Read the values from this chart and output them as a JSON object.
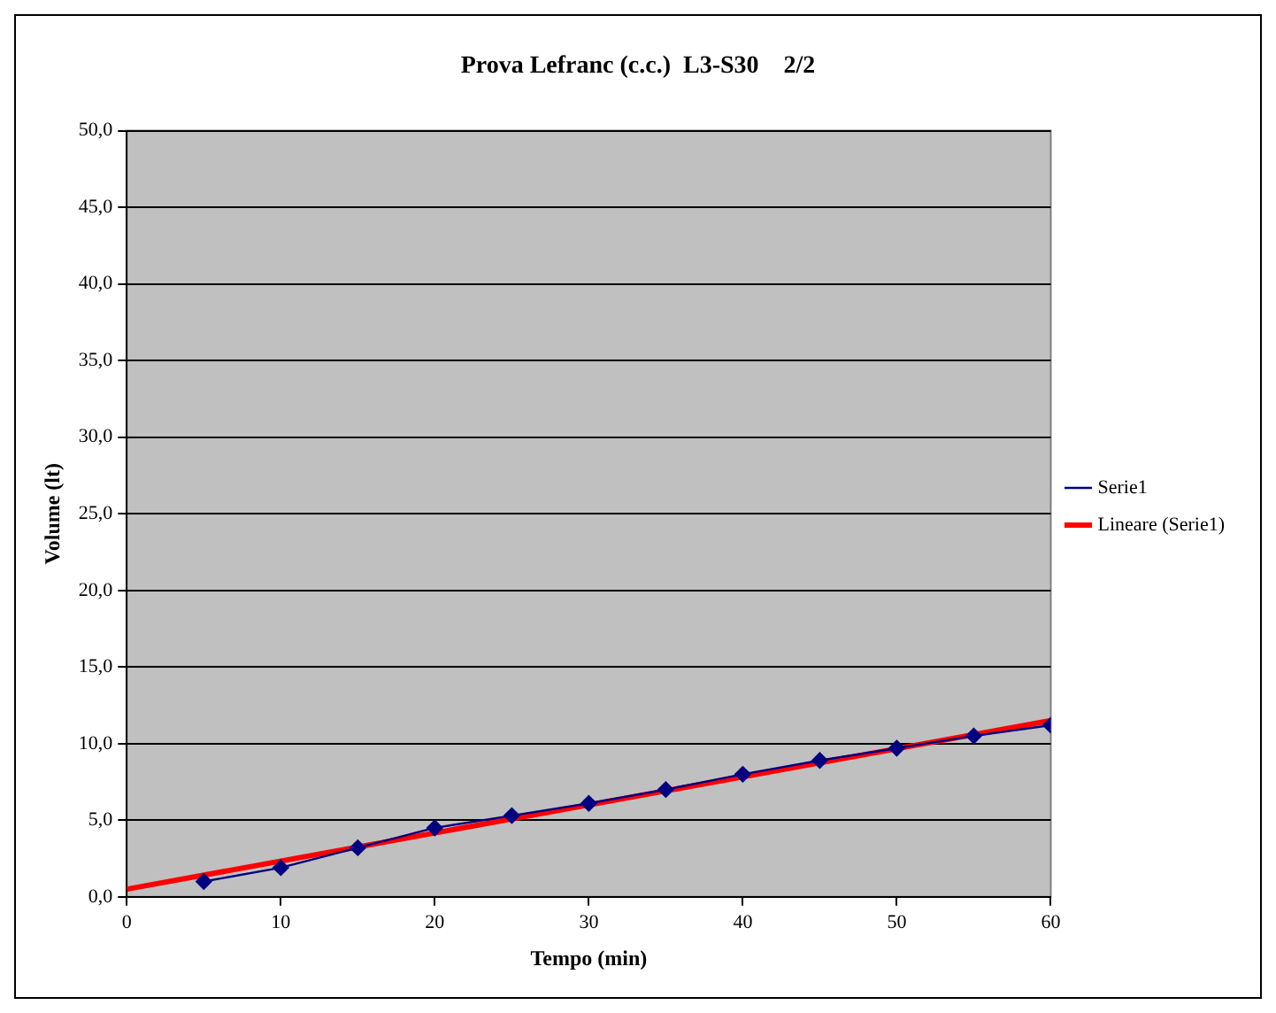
{
  "chart_data": {
    "type": "line",
    "title": "Prova Lefranc (c.c.)  L3-S30    2/2",
    "xlabel": "Tempo (min)",
    "ylabel": "Volume (lt)",
    "x": [
      5,
      10,
      15,
      20,
      25,
      30,
      35,
      40,
      45,
      50,
      55,
      60
    ],
    "series": [
      {
        "name": "Serie1",
        "color": "#000080",
        "values": [
          1.0,
          1.9,
          3.2,
          4.5,
          5.3,
          6.1,
          7.0,
          8.0,
          8.9,
          9.7,
          10.5,
          11.2
        ],
        "marker": "diamond"
      },
      {
        "name": "Lineare (Serie1)",
        "type": "line",
        "color": "#ff0000",
        "x": [
          0,
          60
        ],
        "values": [
          0.5,
          11.5
        ],
        "marker": "none"
      }
    ],
    "xlim": [
      0,
      60
    ],
    "xticks": [
      0,
      10,
      20,
      30,
      40,
      50,
      60
    ],
    "ylim": [
      0,
      50
    ],
    "yticks": [
      {
        "value": 0,
        "label": "0,0"
      },
      {
        "value": 5,
        "label": "5,0"
      },
      {
        "value": 10,
        "label": "10,0"
      },
      {
        "value": 15,
        "label": "15,0"
      },
      {
        "value": 20,
        "label": "20,0"
      },
      {
        "value": 25,
        "label": "25,0"
      },
      {
        "value": 30,
        "label": "30,0"
      },
      {
        "value": 35,
        "label": "35,0"
      },
      {
        "value": 40,
        "label": "40,0"
      },
      {
        "value": 45,
        "label": "45,0"
      },
      {
        "value": 50,
        "label": "50,0"
      }
    ],
    "grid": "y",
    "legend": "right"
  }
}
